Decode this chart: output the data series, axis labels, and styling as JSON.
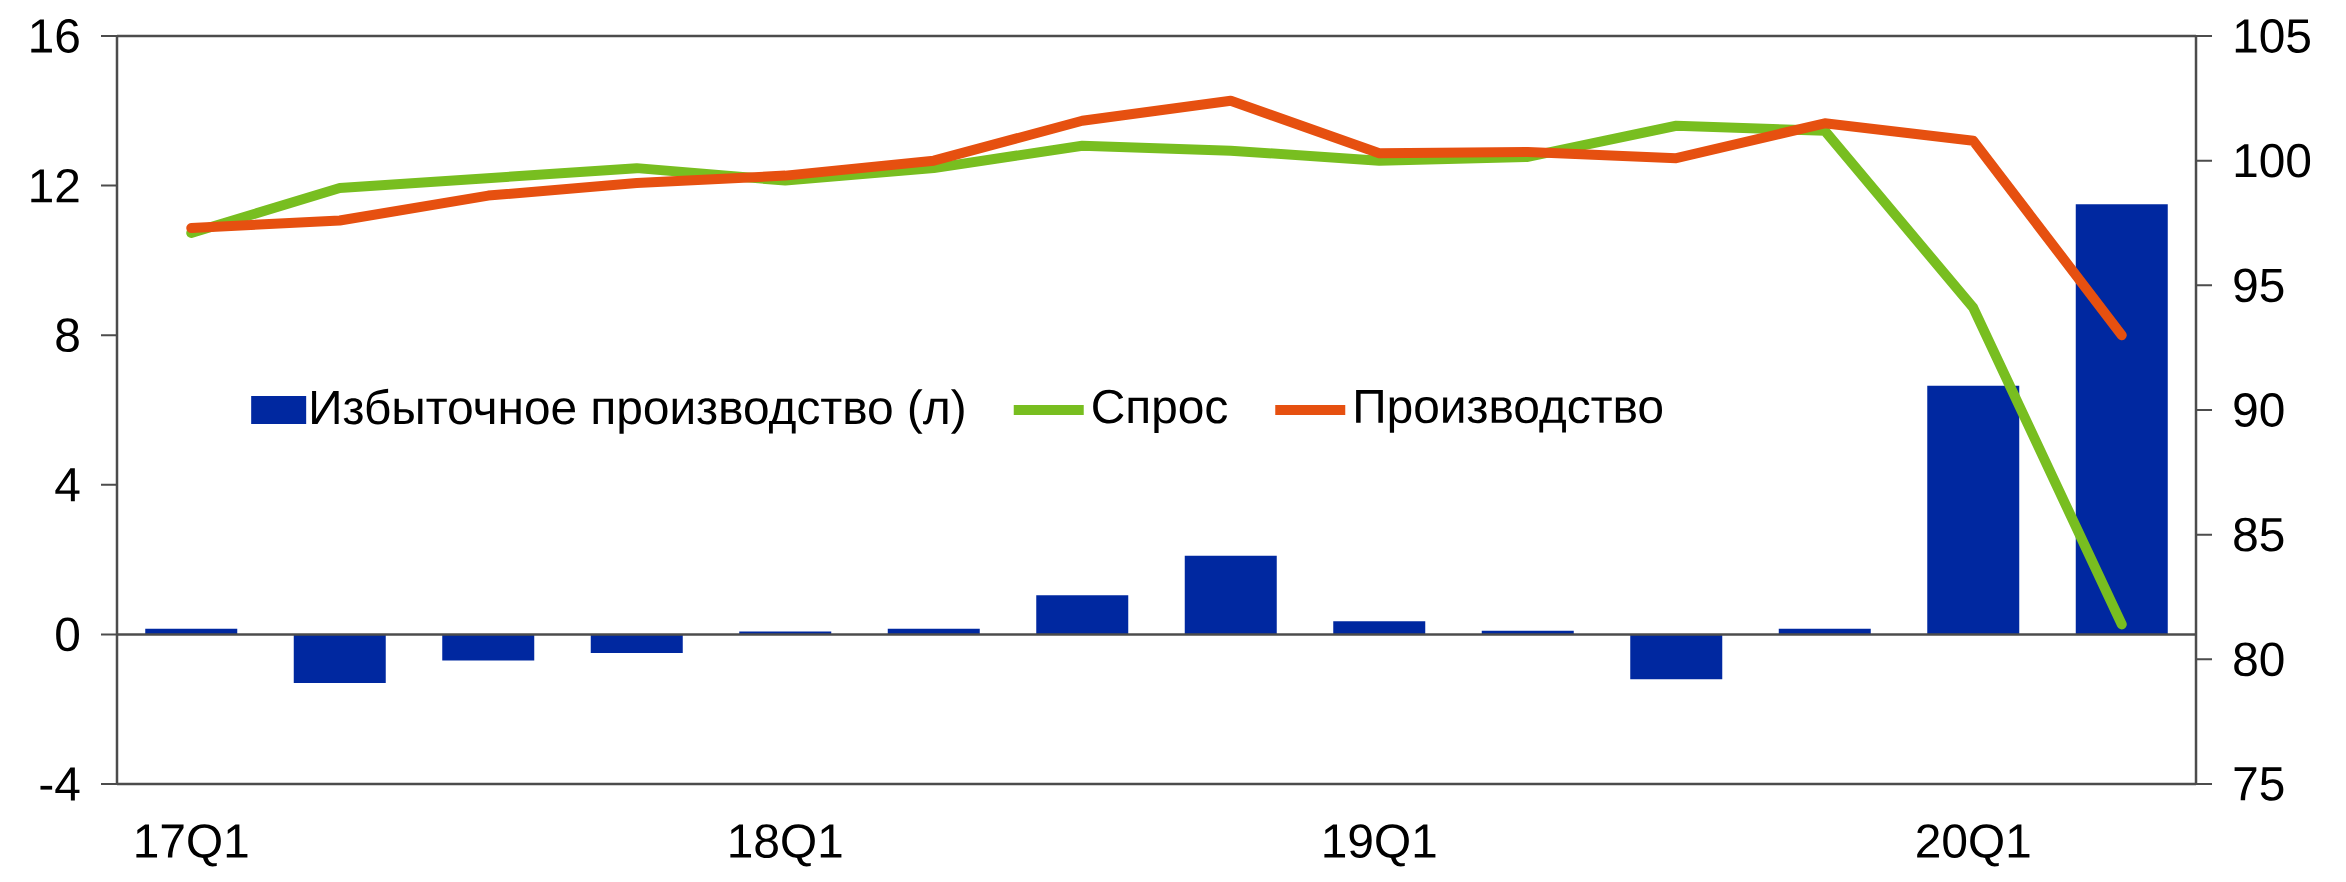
{
  "chart_data": {
    "type": "bar",
    "categories": [
      "17Q1",
      null,
      null,
      null,
      "18Q1",
      null,
      null,
      null,
      "19Q1",
      null,
      null,
      null,
      "20Q1",
      null
    ],
    "series": [
      {
        "name": "Избыточное производство (л)",
        "color": "#0028a0",
        "values": [
          0.15,
          -1.3,
          -0.7,
          -0.5,
          0.08,
          0.15,
          1.05,
          2.1,
          0.35,
          0.1,
          -1.2,
          0.15,
          6.65,
          11.5
        ]
      },
      {
        "name": "Спрос",
        "type": "line",
        "axis": "y2",
        "color": "#78be20",
        "values": [
          97.1,
          98.9,
          99.3,
          99.7,
          99.2,
          99.7,
          100.6,
          100.4,
          100.0,
          100.15,
          101.4,
          101.2,
          94.1,
          81.4
        ]
      },
      {
        "name": "Производство",
        "type": "line",
        "axis": "y2",
        "color": "#e65010",
        "values": [
          97.3,
          97.6,
          98.6,
          99.1,
          99.4,
          100.0,
          101.6,
          102.4,
          100.3,
          100.35,
          100.1,
          101.5,
          100.8,
          93.0
        ]
      }
    ],
    "ylim": [
      -4,
      16
    ],
    "yticks": [
      -4,
      0,
      4,
      8,
      12,
      16
    ],
    "y2lim": [
      75,
      105
    ],
    "y2ticks": [
      75,
      80,
      85,
      90,
      95,
      100,
      105
    ],
    "legend": "left"
  }
}
